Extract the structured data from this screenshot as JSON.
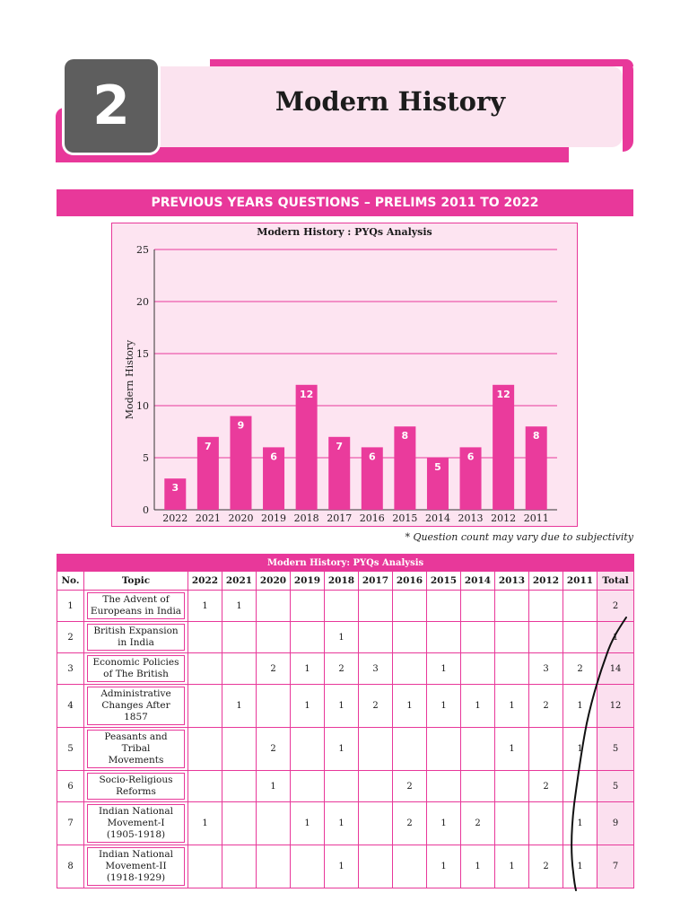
{
  "header": {
    "chapter_number": "2",
    "title": "Modern History"
  },
  "banner": "PREVIOUS YEARS QUESTIONS – PRELIMS 2011 TO 2022",
  "chart_data": {
    "type": "bar",
    "title": "Modern History : PYQs Analysis",
    "xlabel": "",
    "ylabel": "Modern History",
    "categories": [
      "2022",
      "2021",
      "2020",
      "2019",
      "2018",
      "2017",
      "2016",
      "2015",
      "2014",
      "2013",
      "2012",
      "2011"
    ],
    "values": [
      3,
      7,
      9,
      6,
      12,
      7,
      6,
      8,
      5,
      6,
      12,
      8
    ],
    "ylim": [
      0,
      25
    ],
    "yticks": [
      0,
      5,
      10,
      15,
      20,
      25
    ],
    "grid": true,
    "data_labels": true
  },
  "chart_note": "* Question count may vary due to subjectivity",
  "table": {
    "caption": "Modern History: PYQs Analysis",
    "headers": [
      "No.",
      "Topic",
      "2022",
      "2021",
      "2020",
      "2019",
      "2018",
      "2017",
      "2016",
      "2015",
      "2014",
      "2013",
      "2012",
      "2011",
      "Total"
    ],
    "rows": [
      {
        "no": "1",
        "topic": [
          "The Advent of",
          "Europeans in India"
        ],
        "cells": [
          "1",
          "1",
          "",
          "",
          "",
          "",
          "",
          "",
          "",
          "",
          "",
          ""
        ],
        "total": "2"
      },
      {
        "no": "2",
        "topic": [
          "British Expansion",
          "in India"
        ],
        "cells": [
          "",
          "",
          "",
          "",
          "1",
          "",
          "",
          "",
          "",
          "",
          "",
          ""
        ],
        "total": "1"
      },
      {
        "no": "3",
        "topic": [
          "Economic Policies",
          "of The British"
        ],
        "cells": [
          "",
          "",
          "2",
          "1",
          "2",
          "3",
          "",
          "1",
          "",
          "",
          "3",
          "2"
        ],
        "total": "14"
      },
      {
        "no": "4",
        "topic": [
          "Administrative",
          "Changes After 1857"
        ],
        "cells": [
          "",
          "1",
          "",
          "1",
          "1",
          "2",
          "1",
          "1",
          "1",
          "1",
          "2",
          "1"
        ],
        "total": "12"
      },
      {
        "no": "5",
        "topic": [
          "Peasants and Tribal",
          "Movements"
        ],
        "cells": [
          "",
          "",
          "2",
          "",
          "1",
          "",
          "",
          "",
          "",
          "1",
          "",
          "1"
        ],
        "total": "5"
      },
      {
        "no": "6",
        "topic": [
          "Socio-Religious",
          "Reforms"
        ],
        "cells": [
          "",
          "",
          "1",
          "",
          "",
          "",
          "2",
          "",
          "",
          "",
          "2",
          ""
        ],
        "total": "5"
      },
      {
        "no": "7",
        "topic": [
          "Indian National",
          "Movement-I",
          "(1905-1918)"
        ],
        "cells": [
          "1",
          "",
          "",
          "1",
          "1",
          "",
          "2",
          "1",
          "2",
          "",
          "",
          "1"
        ],
        "total": "9"
      },
      {
        "no": "8",
        "topic": [
          "Indian National",
          "Movement-II",
          "(1918-1929)"
        ],
        "cells": [
          "",
          "",
          "",
          "",
          "1",
          "",
          "",
          "1",
          "1",
          "1",
          "2",
          "1"
        ],
        "total": "7"
      }
    ]
  },
  "colors": {
    "accent": "#e8389a",
    "accent_light": "#fbe3ef",
    "chart_bg": "#fde4f1",
    "number_box": "#5e5e5e"
  }
}
